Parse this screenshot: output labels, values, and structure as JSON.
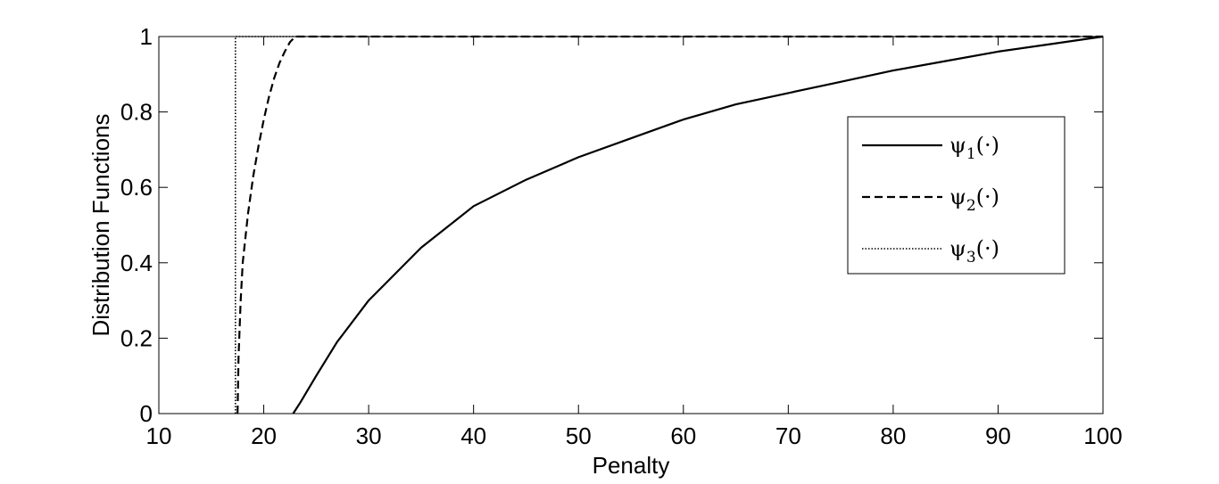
{
  "chart_data": {
    "type": "line",
    "xlabel": "Penalty",
    "ylabel": "Distribution Functions",
    "xlim": [
      10,
      100
    ],
    "ylim": [
      0,
      1
    ],
    "xticks": [
      10,
      20,
      30,
      40,
      50,
      60,
      70,
      80,
      90,
      100
    ],
    "yticks": [
      0,
      0.2,
      0.4,
      0.6,
      0.8,
      1
    ],
    "xtick_labels": [
      "10",
      "20",
      "30",
      "40",
      "50",
      "60",
      "70",
      "80",
      "90",
      "100"
    ],
    "ytick_labels": [
      "0",
      "0.2",
      "0.4",
      "0.6",
      "0.8",
      "1"
    ],
    "grid": false,
    "legend_position": "right",
    "series": [
      {
        "name": "ψ1(·)",
        "legend_main": "ψ",
        "legend_sub": "1",
        "legend_tail": "(·)",
        "style": "solid",
        "x": [
          22.8,
          23.5,
          25,
          27,
          30,
          35,
          40,
          45,
          50,
          55,
          60,
          65,
          70,
          75,
          80,
          85,
          90,
          95,
          100
        ],
        "y": [
          0,
          0.03,
          0.1,
          0.19,
          0.3,
          0.44,
          0.55,
          0.62,
          0.68,
          0.73,
          0.78,
          0.82,
          0.85,
          0.88,
          0.91,
          0.935,
          0.96,
          0.98,
          1.0
        ]
      },
      {
        "name": "ψ2(·)",
        "legend_main": "ψ",
        "legend_sub": "2",
        "legend_tail": "(·)",
        "style": "dashed",
        "x": [
          17.5,
          17.6,
          17.8,
          18.0,
          18.5,
          19.0,
          19.5,
          20.0,
          20.5,
          21.0,
          21.5,
          22.0,
          22.5,
          23.0,
          100
        ],
        "y": [
          0,
          0.15,
          0.3,
          0.4,
          0.53,
          0.63,
          0.71,
          0.78,
          0.84,
          0.89,
          0.93,
          0.96,
          0.985,
          1.0,
          1.0
        ]
      },
      {
        "name": "ψ3(·)",
        "legend_main": "ψ",
        "legend_sub": "3",
        "legend_tail": "(·)",
        "style": "dotted",
        "x": [
          17.3,
          17.3,
          100
        ],
        "y": [
          0,
          1.0,
          1.0
        ]
      }
    ]
  }
}
